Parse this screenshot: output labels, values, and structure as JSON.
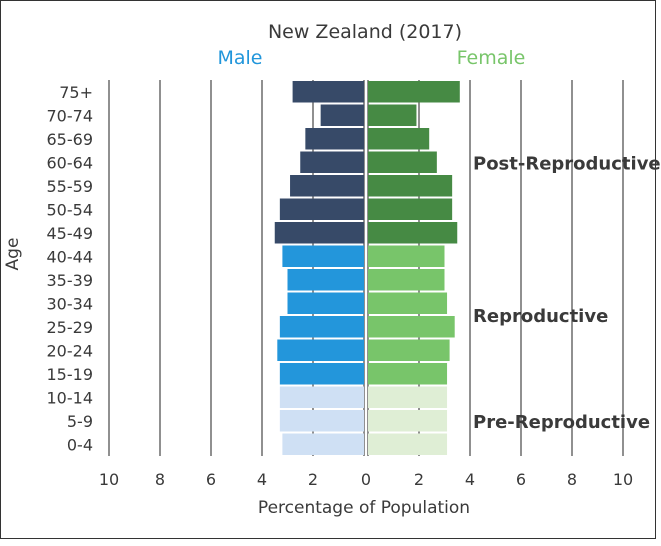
{
  "chart_data": {
    "type": "bar",
    "subtype": "population-pyramid",
    "title": "New Zealand (2017)",
    "xlabel": "Percentage of Population",
    "ylabel": "Age",
    "xlim": [
      0,
      10
    ],
    "x_ticks": [
      "10",
      "8",
      "6",
      "4",
      "2",
      "0",
      "2",
      "4",
      "6",
      "8",
      "10"
    ],
    "grid": true,
    "categories": [
      "75+",
      "70-74",
      "65-69",
      "60-64",
      "55-59",
      "50-54",
      "45-49",
      "40-44",
      "35-39",
      "30-34",
      "25-29",
      "20-24",
      "15-19",
      "10-14",
      "5-9",
      "0-4"
    ],
    "series": [
      {
        "name": "Male",
        "color": "#2090d8",
        "values": [
          2.8,
          1.7,
          2.3,
          2.5,
          2.9,
          3.3,
          3.5,
          3.2,
          3.0,
          3.0,
          3.3,
          3.4,
          3.3,
          3.3,
          3.3,
          3.2
        ]
      },
      {
        "name": "Female",
        "color": "#6cc070",
        "values": [
          3.6,
          1.9,
          2.4,
          2.7,
          3.3,
          3.3,
          3.5,
          3.0,
          3.0,
          3.1,
          3.4,
          3.2,
          3.1,
          3.1,
          3.1,
          3.1
        ]
      }
    ],
    "groups": [
      {
        "label": "Post-Reproductive",
        "from": 0,
        "to": 6,
        "male_color": "#374a68",
        "female_color": "#468a44"
      },
      {
        "label": "Reproductive",
        "from": 7,
        "to": 12,
        "male_color": "#2396db",
        "female_color": "#78c56a"
      },
      {
        "label": "Pre-Reproductive",
        "from": 13,
        "to": 15,
        "male_color": "#cfe0f4",
        "female_color": "#dfeed5"
      }
    ]
  }
}
